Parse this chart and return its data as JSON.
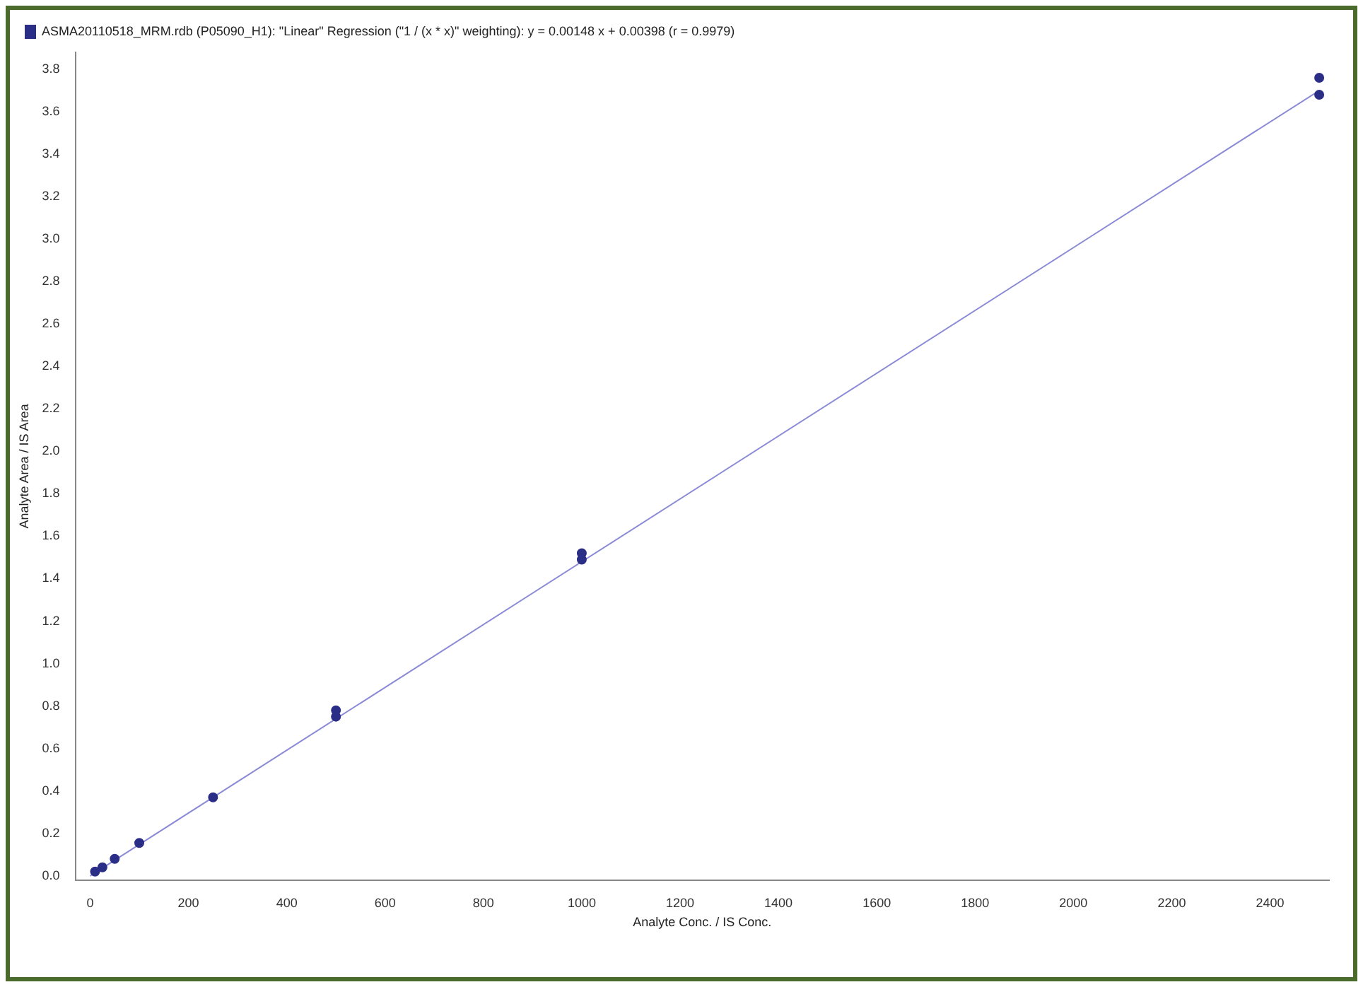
{
  "chart_data": {
    "type": "scatter",
    "xlabel": "Analyte Conc. / IS Conc.",
    "ylabel": "Analyte Area / IS Area",
    "xlim": [
      -30,
      2520
    ],
    "xticks": [
      0,
      200,
      400,
      600,
      800,
      1000,
      1200,
      1400,
      1600,
      1800,
      2000,
      2200,
      2400
    ],
    "ylim": [
      -0.02,
      3.88
    ],
    "yticks": [
      {
        "value": 0,
        "label": "0.0"
      },
      0.2,
      0.4,
      0.6,
      0.8,
      {
        "value": 1,
        "label": "1.0"
      },
      1.2,
      1.4,
      1.6,
      1.8,
      {
        "value": 2,
        "label": "2.0"
      },
      2.2,
      2.4,
      2.6,
      2.8,
      {
        "value": 3,
        "label": "3.0"
      },
      3.2,
      3.4,
      3.6,
      3.8
    ],
    "grid": false,
    "legend": "top left",
    "marker": "circle",
    "series": [
      {
        "name": "ASMA20110518_MRM.rdb (P05090_H1): \"Linear\" Regression (\"1 / (x * x)\" weighting): y = 0.00148 x + 0.00398 (r = 0.9979)",
        "color": "#2b2e86",
        "x": [
          10,
          25,
          50,
          100,
          250,
          500,
          500,
          1000,
          1000,
          2500,
          2500
        ],
        "values": [
          0.02,
          0.04,
          0.08,
          0.155,
          0.37,
          0.75,
          0.78,
          1.49,
          1.52,
          3.68,
          3.76
        ]
      },
      {
        "type": "line",
        "color": "#8a8ad6",
        "x": [
          0,
          2500
        ],
        "values": [
          0.0,
          3.7
        ],
        "marker": "none"
      }
    ]
  }
}
